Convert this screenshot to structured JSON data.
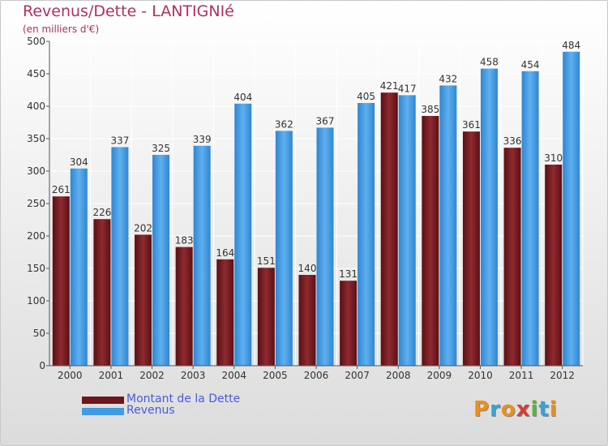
{
  "title": "Revenus/Dette - LANTIGNIé",
  "subtitle": "(en milliers d'€)",
  "logo_text": "Proxiti",
  "chart_data": {
    "type": "bar",
    "categories": [
      "2000",
      "2001",
      "2002",
      "2003",
      "2004",
      "2005",
      "2006",
      "2007",
      "2008",
      "2009",
      "2010",
      "2011",
      "2012"
    ],
    "series": [
      {
        "name": "Montant de la Dette",
        "color": "#7a1f24",
        "values": [
          261,
          226,
          202,
          183,
          164,
          151,
          140,
          131,
          421,
          385,
          361,
          336,
          310
        ]
      },
      {
        "name": "Revenus",
        "color": "#3f9be3",
        "values": [
          304,
          337,
          325,
          339,
          404,
          362,
          367,
          405,
          417,
          432,
          458,
          454,
          484
        ]
      }
    ],
    "ylim": [
      0,
      500
    ],
    "yticks": [
      0,
      50,
      100,
      150,
      200,
      250,
      300,
      350,
      400,
      450,
      500
    ],
    "grid": true,
    "legend_position": "bottom-left"
  }
}
